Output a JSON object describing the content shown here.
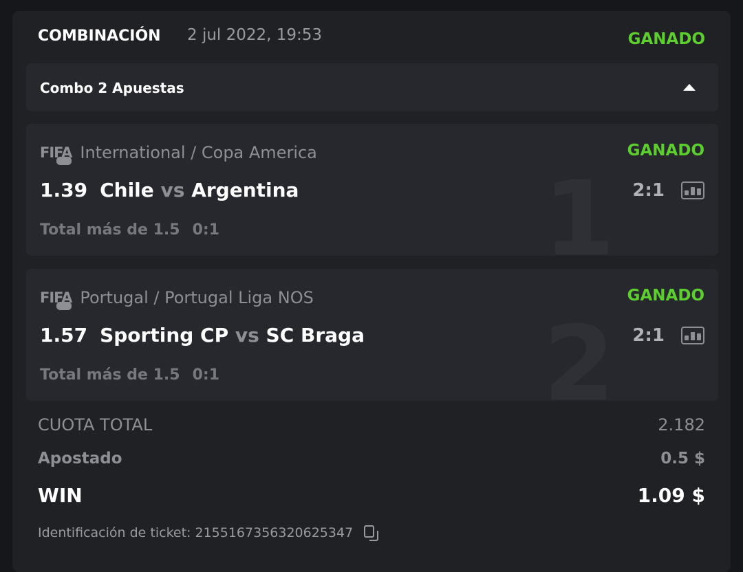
{
  "header": {
    "title": "COMBINACIÓN",
    "date": "2 jul 2022, 19:53",
    "status": "GANADO"
  },
  "combo": {
    "label": "Combo 2 Apuestas",
    "caret_icon": "caret-up-icon"
  },
  "bets": [
    {
      "index": "1",
      "logo": "FIFA",
      "league": "International / Copa America",
      "status": "GANADO",
      "odd": "1.39",
      "home": "Chile",
      "vs": "vs",
      "away": "Argentina",
      "score": "2:1",
      "market": "Total más de 1.5",
      "market_result": "0:1"
    },
    {
      "index": "2",
      "logo": "FIFA",
      "league": "Portugal / Portugal Liga NOS",
      "status": "GANADO",
      "odd": "1.57",
      "home": "Sporting CP",
      "vs": "vs",
      "away": "SC Braga",
      "score": "2:1",
      "market": "Total más de 1.5",
      "market_result": "0:1"
    }
  ],
  "summary": {
    "total_odds_label": "CUOTA TOTAL",
    "total_odds": "2.182",
    "stake_label": "Apostado",
    "stake": "0.5 $",
    "win_label": "WIN",
    "win": "1.09 $"
  },
  "ticket": {
    "label": "Identificación de ticket: 2155167356320625347"
  },
  "colors": {
    "win_green": "#5ccf2e",
    "card": "#202125",
    "panel": "#27282d"
  }
}
